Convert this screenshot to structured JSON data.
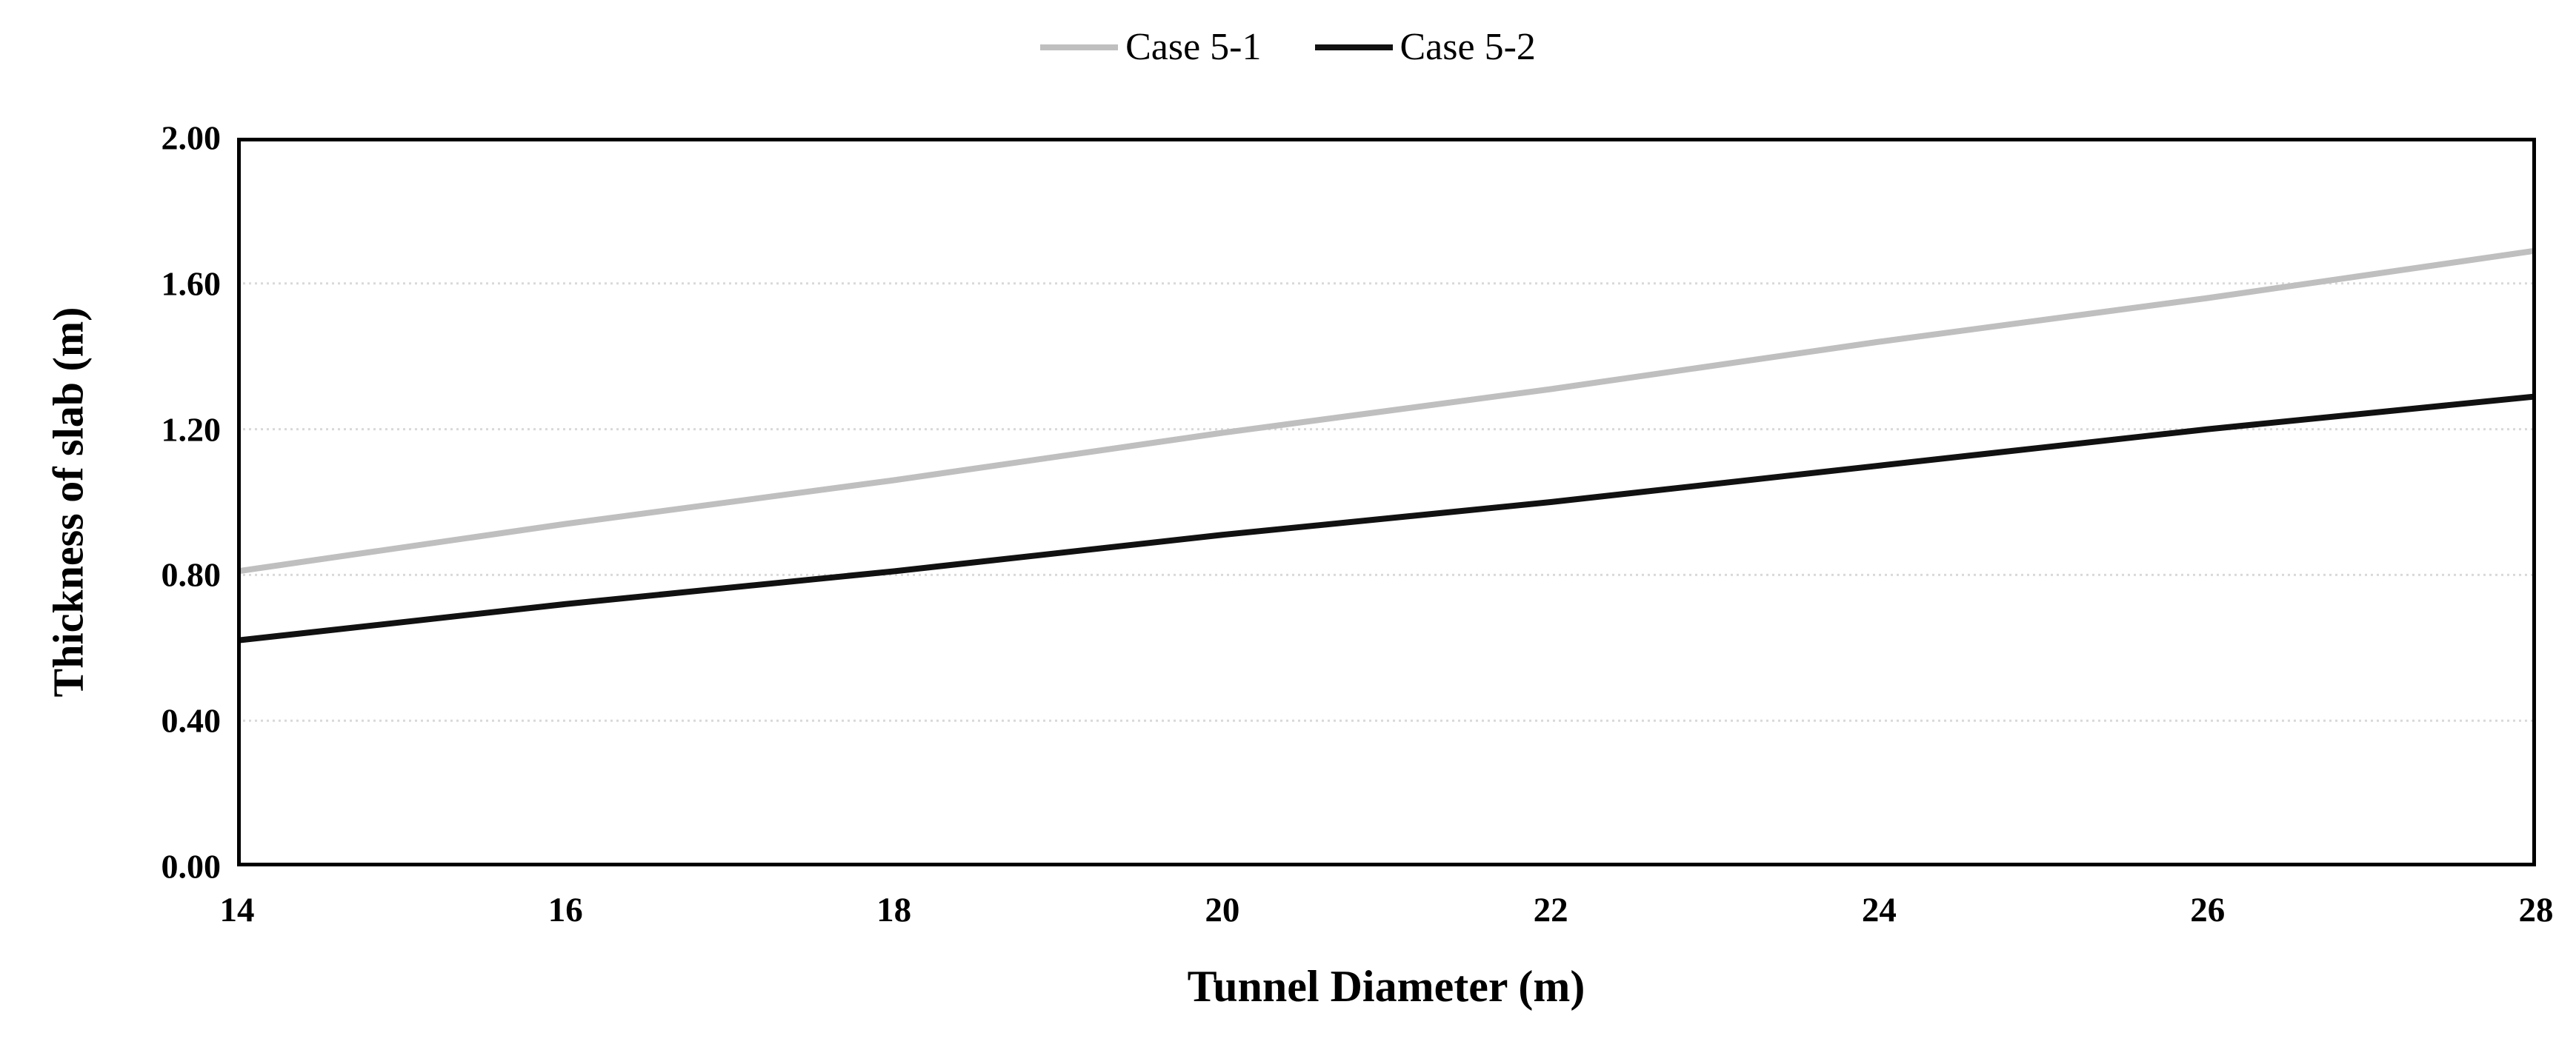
{
  "chart_data": {
    "type": "line",
    "title": "",
    "xlabel": "Tunnel Diameter (m)",
    "ylabel": "Thickness of slab (m)",
    "xlim": [
      14,
      28
    ],
    "ylim": [
      0,
      2
    ],
    "x": [
      14,
      16,
      18,
      20,
      22,
      24,
      26,
      28
    ],
    "xticks": [
      "14",
      "16",
      "18",
      "20",
      "22",
      "24",
      "26",
      "28"
    ],
    "xtick_values": [
      14,
      16,
      18,
      20,
      22,
      24,
      26,
      28
    ],
    "yticks": [
      "0.00",
      "0.40",
      "0.80",
      "1.20",
      "1.60",
      "2.00"
    ],
    "ytick_values": [
      0,
      0.4,
      0.8,
      1.2,
      1.6,
      2
    ],
    "grid": "horizontal-dotted",
    "legend_position": "top-center",
    "plot_border_color": "#000000",
    "gridline_color": "#d9d9d9",
    "series": [
      {
        "name": "Case 5-1",
        "color": "#bfbfbf",
        "values": [
          0.81,
          0.94,
          1.06,
          1.19,
          1.31,
          1.44,
          1.56,
          1.69
        ]
      },
      {
        "name": "Case 5-2",
        "color": "#111111",
        "values": [
          0.62,
          0.72,
          0.81,
          0.91,
          1.0,
          1.1,
          1.2,
          1.29
        ]
      }
    ]
  }
}
